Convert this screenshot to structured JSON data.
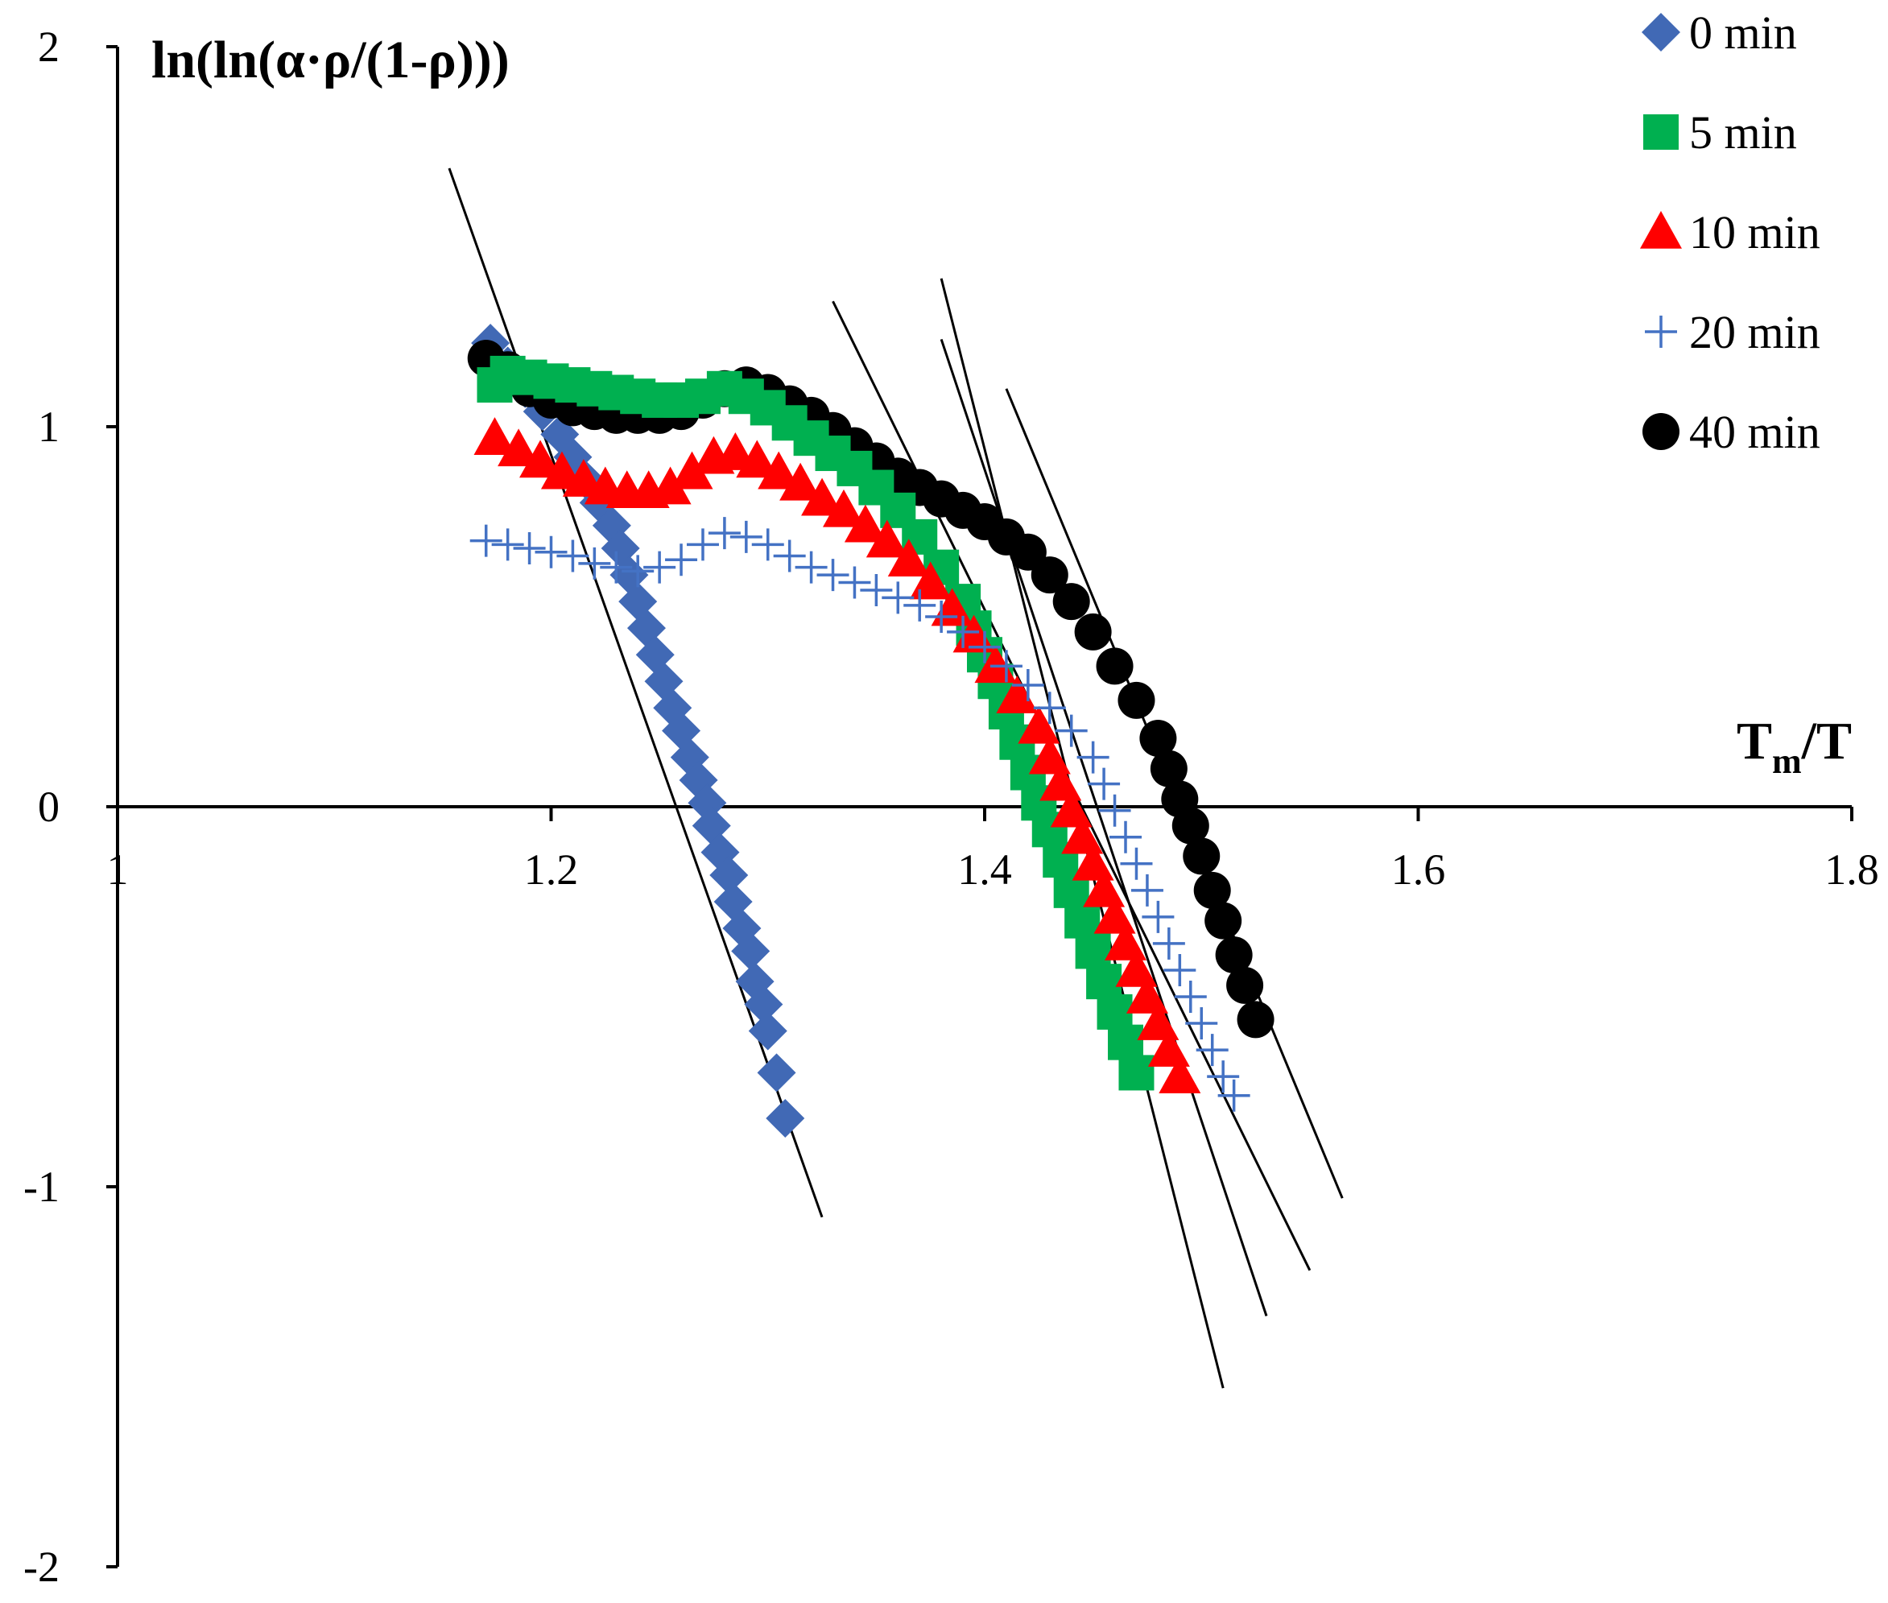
{
  "chart_data": {
    "type": "scatter",
    "xlabel": "Tm/T",
    "xlabel_main": "T",
    "xlabel_sub": "m",
    "xlabel_tail": "/T",
    "ylabel": "ln(ln(α·ρ/(1-ρ)))",
    "xlim": [
      1.0,
      1.8
    ],
    "ylim": [
      -2,
      2
    ],
    "x_ticks": [
      1.0,
      1.2,
      1.4,
      1.6,
      1.8
    ],
    "x_tick_labels": [
      "1",
      "1.2",
      "1.4",
      "1.6",
      "1.8"
    ],
    "y_ticks": [
      -2,
      -1,
      0,
      1,
      2
    ],
    "y_tick_labels": [
      "-2",
      "-1",
      "0",
      "1",
      "2"
    ],
    "grid": false,
    "legend_position": "top-right",
    "series": [
      {
        "name": "0 min",
        "marker": "diamond",
        "color": "#4169b5",
        "points": [
          [
            1.172,
            1.22
          ],
          [
            1.18,
            1.16
          ],
          [
            1.188,
            1.1
          ],
          [
            1.196,
            1.04
          ],
          [
            1.204,
            0.98
          ],
          [
            1.21,
            0.92
          ],
          [
            1.216,
            0.86
          ],
          [
            1.222,
            0.8
          ],
          [
            1.228,
            0.74
          ],
          [
            1.232,
            0.68
          ],
          [
            1.236,
            0.61
          ],
          [
            1.24,
            0.54
          ],
          [
            1.244,
            0.47
          ],
          [
            1.248,
            0.4
          ],
          [
            1.252,
            0.33
          ],
          [
            1.256,
            0.26
          ],
          [
            1.26,
            0.2
          ],
          [
            1.264,
            0.13
          ],
          [
            1.268,
            0.07
          ],
          [
            1.272,
            0.01
          ],
          [
            1.274,
            -0.05
          ],
          [
            1.278,
            -0.12
          ],
          [
            1.282,
            -0.18
          ],
          [
            1.284,
            -0.25
          ],
          [
            1.288,
            -0.32
          ],
          [
            1.292,
            -0.38
          ],
          [
            1.294,
            -0.46
          ],
          [
            1.298,
            -0.52
          ],
          [
            1.3,
            -0.59
          ],
          [
            1.304,
            -0.7
          ],
          [
            1.308,
            -0.82
          ]
        ]
      },
      {
        "name": "5 min",
        "marker": "square",
        "color": "#00b050",
        "points": [
          [
            1.174,
            1.11
          ],
          [
            1.18,
            1.14
          ],
          [
            1.19,
            1.13
          ],
          [
            1.2,
            1.12
          ],
          [
            1.21,
            1.11
          ],
          [
            1.22,
            1.1
          ],
          [
            1.23,
            1.09
          ],
          [
            1.24,
            1.08
          ],
          [
            1.25,
            1.07
          ],
          [
            1.26,
            1.07
          ],
          [
            1.27,
            1.08
          ],
          [
            1.28,
            1.1
          ],
          [
            1.29,
            1.08
          ],
          [
            1.3,
            1.05
          ],
          [
            1.31,
            1.01
          ],
          [
            1.32,
            0.97
          ],
          [
            1.33,
            0.93
          ],
          [
            1.34,
            0.89
          ],
          [
            1.35,
            0.84
          ],
          [
            1.36,
            0.78
          ],
          [
            1.37,
            0.71
          ],
          [
            1.38,
            0.63
          ],
          [
            1.39,
            0.54
          ],
          [
            1.395,
            0.47
          ],
          [
            1.4,
            0.4
          ],
          [
            1.405,
            0.33
          ],
          [
            1.41,
            0.25
          ],
          [
            1.415,
            0.17
          ],
          [
            1.42,
            0.09
          ],
          [
            1.425,
            0.01
          ],
          [
            1.43,
            -0.06
          ],
          [
            1.435,
            -0.14
          ],
          [
            1.44,
            -0.22
          ],
          [
            1.445,
            -0.3
          ],
          [
            1.45,
            -0.38
          ],
          [
            1.455,
            -0.46
          ],
          [
            1.46,
            -0.54
          ],
          [
            1.465,
            -0.62
          ],
          [
            1.47,
            -0.7
          ]
        ]
      },
      {
        "name": "10 min",
        "marker": "triangle",
        "color": "#ff0000",
        "points": [
          [
            1.174,
            0.97
          ],
          [
            1.185,
            0.94
          ],
          [
            1.195,
            0.91
          ],
          [
            1.205,
            0.88
          ],
          [
            1.215,
            0.86
          ],
          [
            1.225,
            0.84
          ],
          [
            1.235,
            0.83
          ],
          [
            1.245,
            0.83
          ],
          [
            1.255,
            0.84
          ],
          [
            1.265,
            0.88
          ],
          [
            1.275,
            0.92
          ],
          [
            1.285,
            0.93
          ],
          [
            1.295,
            0.91
          ],
          [
            1.305,
            0.88
          ],
          [
            1.315,
            0.85
          ],
          [
            1.325,
            0.81
          ],
          [
            1.335,
            0.78
          ],
          [
            1.345,
            0.74
          ],
          [
            1.355,
            0.7
          ],
          [
            1.365,
            0.65
          ],
          [
            1.375,
            0.59
          ],
          [
            1.385,
            0.52
          ],
          [
            1.395,
            0.45
          ],
          [
            1.405,
            0.37
          ],
          [
            1.415,
            0.29
          ],
          [
            1.425,
            0.21
          ],
          [
            1.43,
            0.13
          ],
          [
            1.435,
            0.06
          ],
          [
            1.44,
            -0.01
          ],
          [
            1.445,
            -0.08
          ],
          [
            1.45,
            -0.15
          ],
          [
            1.455,
            -0.22
          ],
          [
            1.46,
            -0.29
          ],
          [
            1.465,
            -0.36
          ],
          [
            1.47,
            -0.43
          ],
          [
            1.475,
            -0.5
          ],
          [
            1.48,
            -0.57
          ],
          [
            1.485,
            -0.64
          ],
          [
            1.49,
            -0.71
          ]
        ]
      },
      {
        "name": "20 min",
        "marker": "plus",
        "color": "#4472c4",
        "points": [
          [
            1.17,
            0.7
          ],
          [
            1.18,
            0.69
          ],
          [
            1.19,
            0.68
          ],
          [
            1.2,
            0.67
          ],
          [
            1.21,
            0.66
          ],
          [
            1.22,
            0.64
          ],
          [
            1.23,
            0.63
          ],
          [
            1.24,
            0.62
          ],
          [
            1.25,
            0.63
          ],
          [
            1.26,
            0.65
          ],
          [
            1.27,
            0.69
          ],
          [
            1.28,
            0.72
          ],
          [
            1.29,
            0.71
          ],
          [
            1.3,
            0.69
          ],
          [
            1.31,
            0.66
          ],
          [
            1.32,
            0.63
          ],
          [
            1.33,
            0.61
          ],
          [
            1.34,
            0.59
          ],
          [
            1.35,
            0.57
          ],
          [
            1.36,
            0.55
          ],
          [
            1.37,
            0.53
          ],
          [
            1.38,
            0.5
          ],
          [
            1.39,
            0.46
          ],
          [
            1.4,
            0.42
          ],
          [
            1.41,
            0.37
          ],
          [
            1.42,
            0.32
          ],
          [
            1.43,
            0.26
          ],
          [
            1.44,
            0.2
          ],
          [
            1.45,
            0.13
          ],
          [
            1.455,
            0.06
          ],
          [
            1.46,
            -0.01
          ],
          [
            1.465,
            -0.08
          ],
          [
            1.47,
            -0.15
          ],
          [
            1.475,
            -0.22
          ],
          [
            1.48,
            -0.29
          ],
          [
            1.485,
            -0.36
          ],
          [
            1.49,
            -0.43
          ],
          [
            1.495,
            -0.5
          ],
          [
            1.5,
            -0.57
          ],
          [
            1.505,
            -0.64
          ],
          [
            1.51,
            -0.71
          ],
          [
            1.515,
            -0.76
          ]
        ]
      },
      {
        "name": "40 min",
        "marker": "circle",
        "color": "#000000",
        "points": [
          [
            1.17,
            1.18
          ],
          [
            1.18,
            1.15
          ],
          [
            1.19,
            1.1
          ],
          [
            1.2,
            1.07
          ],
          [
            1.21,
            1.05
          ],
          [
            1.22,
            1.04
          ],
          [
            1.23,
            1.03
          ],
          [
            1.24,
            1.03
          ],
          [
            1.25,
            1.03
          ],
          [
            1.26,
            1.04
          ],
          [
            1.27,
            1.07
          ],
          [
            1.28,
            1.1
          ],
          [
            1.29,
            1.11
          ],
          [
            1.3,
            1.09
          ],
          [
            1.31,
            1.06
          ],
          [
            1.32,
            1.03
          ],
          [
            1.33,
            0.99
          ],
          [
            1.34,
            0.95
          ],
          [
            1.35,
            0.91
          ],
          [
            1.36,
            0.87
          ],
          [
            1.37,
            0.84
          ],
          [
            1.38,
            0.81
          ],
          [
            1.39,
            0.78
          ],
          [
            1.4,
            0.75
          ],
          [
            1.41,
            0.71
          ],
          [
            1.42,
            0.67
          ],
          [
            1.43,
            0.61
          ],
          [
            1.44,
            0.54
          ],
          [
            1.45,
            0.46
          ],
          [
            1.46,
            0.37
          ],
          [
            1.47,
            0.28
          ],
          [
            1.48,
            0.18
          ],
          [
            1.485,
            0.1
          ],
          [
            1.49,
            0.02
          ],
          [
            1.495,
            -0.05
          ],
          [
            1.5,
            -0.13
          ],
          [
            1.505,
            -0.22
          ],
          [
            1.51,
            -0.3
          ],
          [
            1.515,
            -0.39
          ],
          [
            1.52,
            -0.47
          ],
          [
            1.525,
            -0.56
          ]
        ]
      }
    ],
    "fit_lines": [
      {
        "x": [
          1.153,
          1.325
        ],
        "y": [
          1.68,
          -1.08
        ]
      },
      {
        "x": [
          1.38,
          1.51
        ],
        "y": [
          1.39,
          -1.53
        ]
      },
      {
        "x": [
          1.38,
          1.53
        ],
        "y": [
          1.23,
          -1.34
        ]
      },
      {
        "x": [
          1.33,
          1.55
        ],
        "y": [
          1.33,
          -1.22
        ]
      },
      {
        "x": [
          1.41,
          1.565
        ],
        "y": [
          1.1,
          -1.03
        ]
      }
    ]
  }
}
